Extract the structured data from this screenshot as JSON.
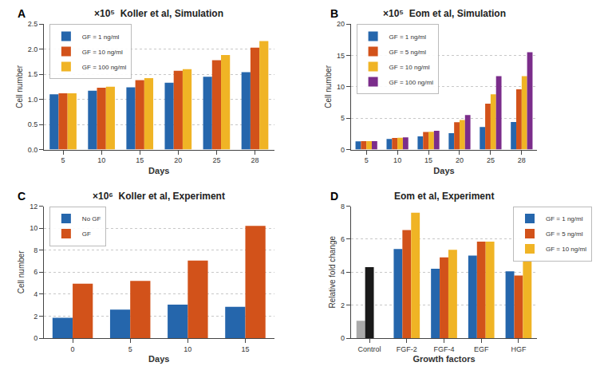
{
  "chart_data": [
    {
      "type": "bar",
      "title": "×10⁵  Koller et al, Simulation",
      "annotations": [
        "A"
      ],
      "xlabel": "Days",
      "ylabel": "Cell number",
      "categories": [
        "5",
        "10",
        "15",
        "20",
        "25",
        "28"
      ],
      "series": [
        {
          "name": "GF = 1 ng/ml",
          "color": "#2566ac",
          "values": [
            1.1,
            1.17,
            1.24,
            1.33,
            1.45,
            1.54
          ]
        },
        {
          "name": "GF = 10 ng/ml",
          "color": "#d2521a",
          "values": [
            1.12,
            1.23,
            1.38,
            1.57,
            1.78,
            2.03
          ]
        },
        {
          "name": "GF = 100 ng/ml",
          "color": "#f0b425",
          "values": [
            1.12,
            1.25,
            1.42,
            1.6,
            1.88,
            2.16
          ]
        }
      ],
      "ylim": [
        0,
        2.5
      ],
      "yticks": [
        {
          "value": 0,
          "label": "0.0"
        },
        0.5,
        {
          "value": 1,
          "label": "1.0"
        },
        1.5,
        {
          "value": 2,
          "label": "2.0"
        },
        2.5
      ],
      "grid": true,
      "legend": "upper left"
    },
    {
      "type": "bar",
      "title": "×10⁵  Eom et al, Simulation",
      "annotations": [
        "B"
      ],
      "xlabel": "Days",
      "ylabel": "Cell number",
      "categories": [
        "5",
        "10",
        "15",
        "20",
        "25",
        "28"
      ],
      "series": [
        {
          "name": "GF = 1 ng/ml",
          "color": "#2566ac",
          "values": [
            1.3,
            1.7,
            2.1,
            2.6,
            3.6,
            4.4
          ]
        },
        {
          "name": "GF = 5 ng/ml",
          "color": "#d2521a",
          "values": [
            1.35,
            1.85,
            2.8,
            4.35,
            7.3,
            9.6
          ]
        },
        {
          "name": "GF = 10 ng/ml",
          "color": "#f0b425",
          "values": [
            1.35,
            1.9,
            2.85,
            4.7,
            8.8,
            11.7
          ]
        },
        {
          "name": "GF = 100 ng/ml",
          "color": "#7b2d8b",
          "values": [
            1.35,
            1.95,
            3.0,
            5.5,
            11.7,
            15.5
          ]
        }
      ],
      "ylim": [
        0,
        20
      ],
      "yticks": [
        0,
        5,
        10,
        15,
        20
      ],
      "grid": true,
      "legend": "upper left"
    },
    {
      "type": "bar",
      "title": "×10⁶  Koller et al, Experiment",
      "annotations": [
        "C"
      ],
      "xlabel": "Days",
      "ylabel": "Cell number",
      "categories": [
        "0",
        "5",
        "10",
        "15"
      ],
      "series": [
        {
          "name": "No GF",
          "color": "#2566ac",
          "values": [
            1.85,
            2.6,
            3.05,
            2.85
          ]
        },
        {
          "name": "GF",
          "color": "#d2521a",
          "values": [
            4.95,
            5.2,
            7.05,
            10.2
          ]
        }
      ],
      "ylim": [
        0,
        12
      ],
      "yticks": [
        0,
        2,
        4,
        6,
        8,
        10,
        12
      ],
      "grid": true,
      "legend": "upper left"
    },
    {
      "type": "bar",
      "title": "Eom et al, Experiment",
      "annotations": [
        "D"
      ],
      "xlabel": "Growth factors",
      "ylabel": "Relative fold change",
      "categories": [
        "Control",
        "FGF-2",
        "FGF-4",
        "EGF",
        "HGF"
      ],
      "series": [
        {
          "color": "#aaaaaa",
          "values": [
            1.05,
            null,
            null,
            null,
            null
          ]
        },
        {
          "color": "#1a1a1a",
          "values": [
            4.3,
            null,
            null,
            null,
            null
          ]
        },
        {
          "name": "GF = 1 ng/ml",
          "color": "#2566ac",
          "values": [
            null,
            5.4,
            4.2,
            5.0,
            4.05
          ]
        },
        {
          "name": "GF = 5 ng/ml",
          "color": "#d2521a",
          "values": [
            null,
            6.55,
            4.9,
            5.85,
            3.8
          ]
        },
        {
          "name": "GF = 10 ng/ml",
          "color": "#f0b425",
          "values": [
            null,
            7.6,
            5.35,
            5.85,
            4.7
          ]
        }
      ],
      "ylim": [
        0,
        8
      ],
      "yticks": [
        0,
        2,
        4,
        6,
        8
      ],
      "grid": true,
      "legend": "upper right"
    }
  ]
}
